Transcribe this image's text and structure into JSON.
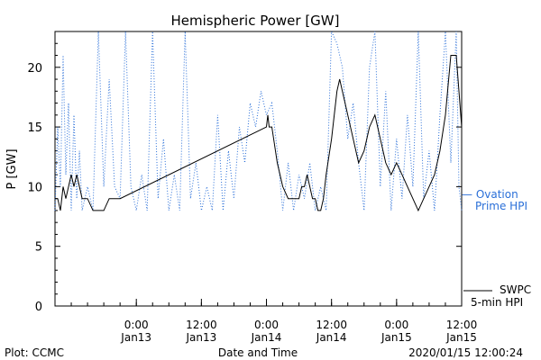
{
  "chart_data": {
    "type": "line",
    "title": "Hemispheric Power [GW]",
    "ylabel": "P [GW]",
    "xlabel": "Date and Time",
    "ylim": [
      0,
      23
    ],
    "yticks": [
      0,
      5,
      10,
      15,
      20
    ],
    "xlim": [
      "2020-01-12 09:00",
      "2020-01-15 12:00"
    ],
    "xticks": [
      {
        "t": "2020-01-13 00:00",
        "l1": "0:00",
        "l2": "Jan13"
      },
      {
        "t": "2020-01-13 12:00",
        "l1": "12:00",
        "l2": "Jan13"
      },
      {
        "t": "2020-01-14 00:00",
        "l1": "0:00",
        "l2": "Jan14"
      },
      {
        "t": "2020-01-14 12:00",
        "l1": "12:00",
        "l2": "Jan14"
      },
      {
        "t": "2020-01-15 00:00",
        "l1": "0:00",
        "l2": "Jan15"
      },
      {
        "t": "2020-01-15 12:00",
        "l1": "12:00",
        "l2": "Jan15"
      }
    ],
    "series": [
      {
        "name": "SWPC 5-min HPI",
        "color": "#000000",
        "style": "solid",
        "points": [
          [
            "2020-01-12 09:00",
            9
          ],
          [
            "2020-01-12 09:30",
            9
          ],
          [
            "2020-01-12 10:00",
            8
          ],
          [
            "2020-01-12 10:30",
            10
          ],
          [
            "2020-01-12 11:00",
            9
          ],
          [
            "2020-01-12 11:30",
            10
          ],
          [
            "2020-01-12 12:00",
            11
          ],
          [
            "2020-01-12 12:30",
            10
          ],
          [
            "2020-01-12 13:00",
            11
          ],
          [
            "2020-01-12 13:30",
            10
          ],
          [
            "2020-01-12 14:00",
            9
          ],
          [
            "2020-01-12 15:00",
            9
          ],
          [
            "2020-01-12 16:00",
            8
          ],
          [
            "2020-01-12 18:00",
            8
          ],
          [
            "2020-01-12 19:00",
            9
          ],
          [
            "2020-01-12 21:00",
            9
          ],
          [
            "2020-01-14 00:00",
            15
          ],
          [
            "2020-01-14 00:15",
            16
          ],
          [
            "2020-01-14 00:30",
            15
          ],
          [
            "2020-01-14 01:00",
            15
          ],
          [
            "2020-01-14 02:00",
            12
          ],
          [
            "2020-01-14 03:00",
            10
          ],
          [
            "2020-01-14 04:00",
            9
          ],
          [
            "2020-01-14 06:00",
            9
          ],
          [
            "2020-01-14 06:30",
            10
          ],
          [
            "2020-01-14 07:00",
            10
          ],
          [
            "2020-01-14 07:30",
            11
          ],
          [
            "2020-01-14 08:00",
            10
          ],
          [
            "2020-01-14 08:30",
            9
          ],
          [
            "2020-01-14 09:00",
            9
          ],
          [
            "2020-01-14 09:30",
            8
          ],
          [
            "2020-01-14 10:00",
            8
          ],
          [
            "2020-01-14 10:30",
            9
          ],
          [
            "2020-01-14 11:00",
            11
          ],
          [
            "2020-01-14 12:00",
            14
          ],
          [
            "2020-01-14 12:30",
            16
          ],
          [
            "2020-01-14 13:00",
            18
          ],
          [
            "2020-01-14 13:30",
            19
          ],
          [
            "2020-01-14 14:00",
            18
          ],
          [
            "2020-01-14 15:00",
            16
          ],
          [
            "2020-01-14 16:00",
            14
          ],
          [
            "2020-01-14 17:00",
            12
          ],
          [
            "2020-01-14 18:00",
            13
          ],
          [
            "2020-01-14 19:00",
            15
          ],
          [
            "2020-01-14 20:00",
            16
          ],
          [
            "2020-01-14 21:00",
            14
          ],
          [
            "2020-01-14 22:00",
            12
          ],
          [
            "2020-01-14 23:00",
            11
          ],
          [
            "2020-01-15 00:00",
            12
          ],
          [
            "2020-01-15 01:00",
            11
          ],
          [
            "2020-01-15 02:00",
            10
          ],
          [
            "2020-01-15 03:00",
            9
          ],
          [
            "2020-01-15 04:00",
            8
          ],
          [
            "2020-01-15 05:00",
            9
          ],
          [
            "2020-01-15 06:00",
            10
          ],
          [
            "2020-01-15 07:00",
            11
          ],
          [
            "2020-01-15 08:00",
            13
          ],
          [
            "2020-01-15 09:00",
            16
          ],
          [
            "2020-01-15 10:00",
            21
          ],
          [
            "2020-01-15 11:00",
            21
          ],
          [
            "2020-01-15 12:00",
            15
          ]
        ]
      },
      {
        "name": "Ovation Prime HPI",
        "color": "#2a6fd8",
        "style": "dotted",
        "points": [
          [
            "2020-01-12 09:00",
            8
          ],
          [
            "2020-01-12 09:30",
            15
          ],
          [
            "2020-01-12 10:00",
            10
          ],
          [
            "2020-01-12 10:30",
            21
          ],
          [
            "2020-01-12 11:00",
            11
          ],
          [
            "2020-01-12 11:30",
            17
          ],
          [
            "2020-01-12 12:00",
            8
          ],
          [
            "2020-01-12 12:30",
            16
          ],
          [
            "2020-01-12 13:00",
            9
          ],
          [
            "2020-01-12 13:30",
            13
          ],
          [
            "2020-01-12 14:00",
            8
          ],
          [
            "2020-01-12 15:00",
            10
          ],
          [
            "2020-01-12 16:00",
            8
          ],
          [
            "2020-01-12 17:00",
            23
          ],
          [
            "2020-01-12 18:00",
            10
          ],
          [
            "2020-01-12 19:00",
            19
          ],
          [
            "2020-01-12 20:00",
            10
          ],
          [
            "2020-01-12 21:00",
            9
          ],
          [
            "2020-01-12 22:00",
            23
          ],
          [
            "2020-01-12 23:00",
            10
          ],
          [
            "2020-01-13 00:00",
            8
          ],
          [
            "2020-01-13 01:00",
            11
          ],
          [
            "2020-01-13 02:00",
            8
          ],
          [
            "2020-01-13 03:00",
            23
          ],
          [
            "2020-01-13 04:00",
            9
          ],
          [
            "2020-01-13 05:00",
            14
          ],
          [
            "2020-01-13 06:00",
            8
          ],
          [
            "2020-01-13 07:00",
            11
          ],
          [
            "2020-01-13 08:00",
            8
          ],
          [
            "2020-01-13 09:00",
            23
          ],
          [
            "2020-01-13 10:00",
            9
          ],
          [
            "2020-01-13 11:00",
            12
          ],
          [
            "2020-01-13 12:00",
            8
          ],
          [
            "2020-01-13 13:00",
            10
          ],
          [
            "2020-01-13 14:00",
            8
          ],
          [
            "2020-01-13 15:00",
            16
          ],
          [
            "2020-01-13 16:00",
            8
          ],
          [
            "2020-01-13 17:00",
            13
          ],
          [
            "2020-01-13 18:00",
            9
          ],
          [
            "2020-01-13 19:00",
            15
          ],
          [
            "2020-01-13 20:00",
            12
          ],
          [
            "2020-01-13 21:00",
            17
          ],
          [
            "2020-01-13 22:00",
            15
          ],
          [
            "2020-01-13 23:00",
            18
          ],
          [
            "2020-01-14 00:00",
            16
          ],
          [
            "2020-01-14 01:00",
            17
          ],
          [
            "2020-01-14 02:00",
            13
          ],
          [
            "2020-01-14 03:00",
            8
          ],
          [
            "2020-01-14 04:00",
            12
          ],
          [
            "2020-01-14 05:00",
            8
          ],
          [
            "2020-01-14 06:00",
            11
          ],
          [
            "2020-01-14 07:00",
            9
          ],
          [
            "2020-01-14 08:00",
            12
          ],
          [
            "2020-01-14 09:00",
            8
          ],
          [
            "2020-01-14 10:00",
            10
          ],
          [
            "2020-01-14 11:00",
            8
          ],
          [
            "2020-01-14 12:00",
            23
          ],
          [
            "2020-01-14 13:00",
            22
          ],
          [
            "2020-01-14 14:00",
            20
          ],
          [
            "2020-01-14 15:00",
            14
          ],
          [
            "2020-01-14 16:00",
            17
          ],
          [
            "2020-01-14 17:00",
            12
          ],
          [
            "2020-01-14 18:00",
            8
          ],
          [
            "2020-01-14 19:00",
            20
          ],
          [
            "2020-01-14 20:00",
            23
          ],
          [
            "2020-01-14 21:00",
            10
          ],
          [
            "2020-01-14 22:00",
            18
          ],
          [
            "2020-01-14 23:00",
            8
          ],
          [
            "2020-01-15 00:00",
            14
          ],
          [
            "2020-01-15 01:00",
            9
          ],
          [
            "2020-01-15 02:00",
            16
          ],
          [
            "2020-01-15 03:00",
            10
          ],
          [
            "2020-01-15 04:00",
            23
          ],
          [
            "2020-01-15 05:00",
            9
          ],
          [
            "2020-01-15 06:00",
            13
          ],
          [
            "2020-01-15 07:00",
            8
          ],
          [
            "2020-01-15 08:00",
            16
          ],
          [
            "2020-01-15 09:00",
            23
          ],
          [
            "2020-01-15 10:00",
            12
          ],
          [
            "2020-01-15 11:00",
            23
          ],
          [
            "2020-01-15 11:30",
            10
          ],
          [
            "2020-01-15 12:00",
            8
          ]
        ]
      }
    ],
    "legend": [
      {
        "series": "Ovation Prime HPI",
        "line1": "— Ovation",
        "line2": "Prime HPI",
        "placement": "right"
      },
      {
        "series": "SWPC 5-min HPI",
        "line1": "SWPC",
        "line2": "5-min HPI",
        "placement": "bottom-right"
      }
    ],
    "footer": {
      "left": "Plot: CCMC",
      "center": "Date and Time",
      "right": "2020/01/15 12:00:24"
    }
  }
}
